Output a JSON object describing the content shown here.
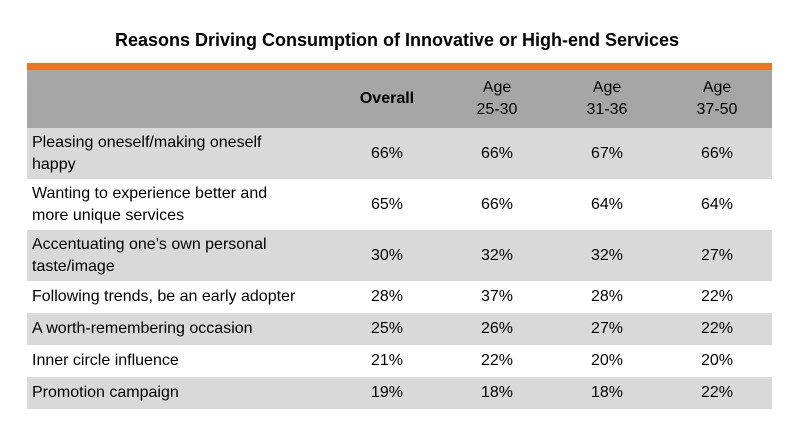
{
  "title": "Reasons Driving Consumption of Innovative or High-end Services",
  "colors": {
    "accent": "#ee7623",
    "header_bg": "#a6a6a6",
    "row_shade": "#d9d9d9"
  },
  "table": {
    "headers": {
      "overall": "Overall",
      "age1": [
        "Age",
        "25-30"
      ],
      "age2": [
        "Age",
        "31-36"
      ],
      "age3": [
        "Age",
        "37-50"
      ]
    },
    "rows": [
      {
        "label": [
          "Pleasing oneself/making oneself",
          "happy"
        ],
        "overall": "66%",
        "age1": "66%",
        "age2": "67%",
        "age3": "66%"
      },
      {
        "label": [
          "Wanting to experience better and",
          "more unique services"
        ],
        "overall": "65%",
        "age1": "66%",
        "age2": "64%",
        "age3": "64%"
      },
      {
        "label": [
          "Accentuating one’s own personal",
          "taste/image"
        ],
        "overall": "30%",
        "age1": "32%",
        "age2": "32%",
        "age3": "27%"
      },
      {
        "label": [
          "Following trends, be an early adopter"
        ],
        "overall": "28%",
        "age1": "37%",
        "age2": "28%",
        "age3": "22%"
      },
      {
        "label": [
          "A worth-remembering occasion"
        ],
        "overall": "25%",
        "age1": "26%",
        "age2": "27%",
        "age3": "22%"
      },
      {
        "label": [
          "Inner circle influence"
        ],
        "overall": "21%",
        "age1": "22%",
        "age2": "20%",
        "age3": "20%"
      },
      {
        "label": [
          "Promotion campaign"
        ],
        "overall": "19%",
        "age1": "18%",
        "age2": "18%",
        "age3": "22%"
      }
    ]
  }
}
